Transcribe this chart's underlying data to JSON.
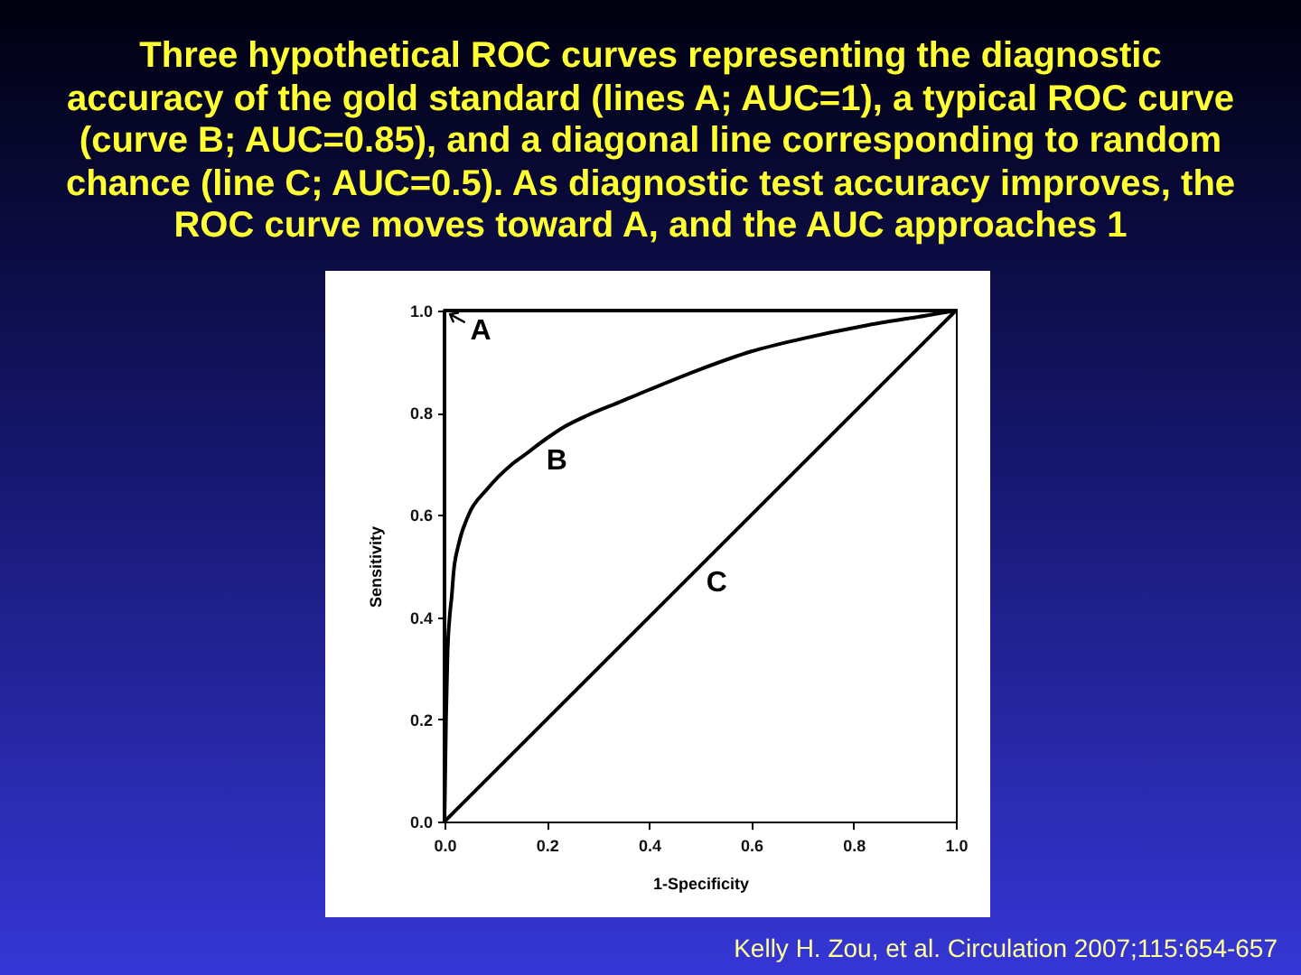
{
  "chart_data": {
    "type": "line",
    "title": "Three hypothetical ROC curves representing the diagnostic accuracy of the gold standard (lines A; AUC=1), a typical ROC curve (curve B; AUC=0.85), and a diagonal line corresponding to random chance (line C; AUC=0.5). As diagnostic test accuracy improves, the ROC curve moves toward A, and the AUC approaches 1",
    "xlabel": "1-Specificity",
    "ylabel": "Sensitivity",
    "xlim": [
      0,
      1
    ],
    "ylim": [
      0,
      1
    ],
    "xticks": [
      {
        "value": 0,
        "label": "0.0"
      },
      0.2,
      0.4,
      0.6,
      0.8,
      {
        "value": 1,
        "label": "1.0"
      }
    ],
    "yticks": [
      {
        "value": 0,
        "label": "0.0"
      },
      0.2,
      0.4,
      0.6,
      0.8,
      {
        "value": 1,
        "label": "1.0"
      }
    ],
    "series": [
      {
        "name": "A",
        "color": "#000000",
        "x": [
          0,
          0,
          1
        ],
        "values": [
          0,
          1,
          1
        ]
      },
      {
        "name": "B",
        "color": "#000000",
        "x": [
          0,
          0.003,
          0.006,
          0.01,
          0.014,
          0.018,
          0.027,
          0.047,
          0.083,
          0.133,
          0.16,
          0.2,
          0.23,
          0.28,
          0.34,
          0.4,
          0.5,
          0.6,
          0.7,
          0.82,
          0.94,
          1
        ],
        "values": [
          0,
          0.2,
          0.33,
          0.4,
          0.44,
          0.49,
          0.54,
          0.6,
          0.65,
          0.7,
          0.72,
          0.75,
          0.77,
          0.795,
          0.82,
          0.845,
          0.885,
          0.92,
          0.945,
          0.97,
          0.99,
          1
        ]
      },
      {
        "name": "C",
        "color": "#000000",
        "x": [
          0,
          1
        ],
        "values": [
          0,
          1
        ]
      }
    ],
    "annotations": [
      "Kelly H. Zou, et al. Circulation 2007;115:654-657"
    ],
    "grid": false,
    "line_style": "solid"
  }
}
